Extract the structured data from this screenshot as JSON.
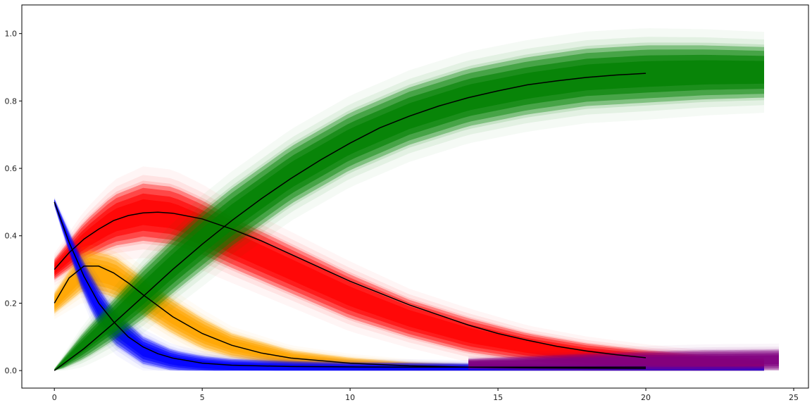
{
  "chart_data": {
    "type": "line",
    "title": "",
    "xlabel": "",
    "ylabel": "",
    "xlim": [
      -1.1,
      25.5
    ],
    "ylim": [
      -0.052,
      1.085
    ],
    "x_ticks": [
      0,
      5,
      10,
      15,
      20,
      25
    ],
    "y_ticks": [
      0.0,
      0.2,
      0.4,
      0.6,
      0.8,
      1.0
    ],
    "x_tick_labels": [
      "0",
      "5",
      "10",
      "15",
      "20",
      "25"
    ],
    "y_tick_labels": [
      "0.0",
      "0.2",
      "0.4",
      "0.6",
      "0.8",
      "1.0"
    ],
    "grid": false,
    "legend": "none",
    "bands": [
      {
        "color": "#ff0000",
        "x": [
          0,
          1,
          2,
          3,
          4,
          5,
          6,
          8,
          10,
          12,
          14,
          16,
          18,
          20,
          22,
          24
        ],
        "center": [
          0.3,
          0.385,
          0.445,
          0.47,
          0.46,
          0.425,
          0.38,
          0.3,
          0.22,
          0.155,
          0.105,
          0.07,
          0.045,
          0.03,
          0.02,
          0.015
        ],
        "half_width": [
          0.03,
          0.055,
          0.075,
          0.085,
          0.085,
          0.08,
          0.075,
          0.07,
          0.065,
          0.055,
          0.05,
          0.04,
          0.035,
          0.03,
          0.025,
          0.02
        ]
      },
      {
        "color": "#ffa500",
        "x": [
          0,
          1,
          2,
          3,
          4,
          5,
          6,
          8,
          10,
          12,
          14,
          16,
          20,
          24
        ],
        "center": [
          0.2,
          0.3,
          0.28,
          0.22,
          0.16,
          0.11,
          0.075,
          0.035,
          0.018,
          0.01,
          0.006,
          0.004,
          0.002,
          0.001
        ],
        "half_width": [
          0.03,
          0.06,
          0.06,
          0.055,
          0.05,
          0.045,
          0.035,
          0.025,
          0.02,
          0.015,
          0.012,
          0.01,
          0.008,
          0.006
        ]
      },
      {
        "color": "#0000ff",
        "x": [
          0,
          0.5,
          1,
          1.5,
          2,
          3,
          4,
          5,
          6,
          8,
          10,
          12,
          16,
          20,
          24
        ],
        "center": [
          0.5,
          0.38,
          0.27,
          0.19,
          0.13,
          0.06,
          0.03,
          0.018,
          0.012,
          0.008,
          0.006,
          0.005,
          0.004,
          0.004,
          0.004
        ],
        "half_width": [
          0.01,
          0.03,
          0.05,
          0.055,
          0.05,
          0.04,
          0.03,
          0.025,
          0.022,
          0.02,
          0.018,
          0.018,
          0.015,
          0.012,
          0.01
        ]
      },
      {
        "color": "#800080",
        "x": [
          14,
          16,
          18,
          20,
          22,
          24.5
        ],
        "center": [
          0.02,
          0.022,
          0.025,
          0.028,
          0.03,
          0.032
        ],
        "half_width": [
          0.015,
          0.02,
          0.025,
          0.028,
          0.03,
          0.03
        ]
      },
      {
        "color": "#008000",
        "x": [
          0,
          1,
          2,
          3,
          4,
          5,
          6,
          8,
          10,
          12,
          14,
          16,
          18,
          20,
          22,
          24
        ],
        "center": [
          0.0,
          0.075,
          0.15,
          0.23,
          0.31,
          0.385,
          0.455,
          0.58,
          0.68,
          0.755,
          0.81,
          0.845,
          0.87,
          0.88,
          0.885,
          0.885
        ],
        "half_width": [
          0.005,
          0.04,
          0.06,
          0.075,
          0.08,
          0.085,
          0.085,
          0.085,
          0.085,
          0.085,
          0.085,
          0.085,
          0.085,
          0.085,
          0.08,
          0.075
        ]
      }
    ],
    "series": [
      {
        "color": "#000000",
        "x": [
          0,
          0.5,
          1,
          1.5,
          2,
          2.5,
          3,
          3.5,
          4,
          5,
          6,
          7,
          8,
          9,
          10,
          11,
          12,
          13,
          14,
          15,
          16,
          17,
          18,
          19,
          20
        ],
        "values": [
          0.3,
          0.35,
          0.39,
          0.42,
          0.445,
          0.46,
          0.468,
          0.47,
          0.467,
          0.45,
          0.42,
          0.385,
          0.345,
          0.305,
          0.265,
          0.23,
          0.195,
          0.165,
          0.135,
          0.11,
          0.09,
          0.072,
          0.058,
          0.047,
          0.038
        ]
      },
      {
        "color": "#000000",
        "x": [
          0,
          0.5,
          1,
          1.5,
          2,
          2.5,
          3,
          4,
          5,
          6,
          7,
          8,
          10,
          12,
          14,
          16,
          18,
          20
        ],
        "values": [
          0.2,
          0.275,
          0.31,
          0.31,
          0.29,
          0.26,
          0.225,
          0.16,
          0.11,
          0.075,
          0.052,
          0.037,
          0.022,
          0.014,
          0.01,
          0.008,
          0.007,
          0.006
        ]
      },
      {
        "color": "#000000",
        "x": [
          0,
          0.25,
          0.5,
          0.75,
          1,
          1.25,
          1.5,
          2,
          2.5,
          3,
          3.5,
          4,
          5,
          6,
          8,
          10,
          12,
          15,
          20
        ],
        "values": [
          0.5,
          0.44,
          0.38,
          0.33,
          0.28,
          0.24,
          0.2,
          0.145,
          0.1,
          0.07,
          0.05,
          0.037,
          0.022,
          0.016,
          0.012,
          0.011,
          0.01,
          0.01,
          0.01
        ]
      },
      {
        "color": "#000000",
        "x": [
          0,
          1,
          2,
          3,
          4,
          5,
          6,
          7,
          8,
          9,
          10,
          11,
          12,
          13,
          14,
          15,
          16,
          17,
          18,
          19,
          20
        ],
        "values": [
          0.0,
          0.065,
          0.14,
          0.22,
          0.3,
          0.375,
          0.445,
          0.51,
          0.57,
          0.625,
          0.675,
          0.72,
          0.755,
          0.785,
          0.81,
          0.83,
          0.848,
          0.86,
          0.87,
          0.877,
          0.882
        ]
      }
    ]
  }
}
